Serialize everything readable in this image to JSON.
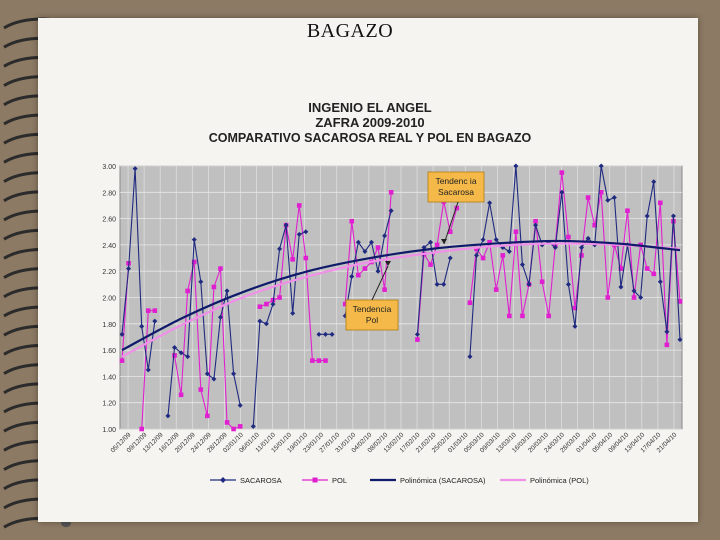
{
  "slide": {
    "title": "BAGAZO"
  },
  "chart_data": {
    "type": "line",
    "title_lines": [
      "INGENIO EL ANGEL",
      "ZAFRA 2009-2010",
      "COMPARATIVO SACAROSA REAL Y POL EN BAGAZO"
    ],
    "xlabel": "",
    "ylabel": "",
    "ylim": [
      1.0,
      3.0
    ],
    "y_ticks": [
      "1.00",
      "1.20",
      "1.40",
      "1.60",
      "1.80",
      "2.00",
      "2.20",
      "2.40",
      "2.60",
      "2.80",
      "3.00"
    ],
    "x_tick_labels": [
      "05/12/09",
      "09/12/09",
      "13/12/09",
      "16/12/09",
      "20/12/09",
      "24/12/09",
      "28/12/09",
      "02/01/10",
      "06/01/10",
      "11/01/10",
      "15/01/10",
      "19/01/10",
      "23/01/10",
      "27/01/10",
      "31/01/10",
      "04/02/10",
      "08/02/10",
      "13/02/10",
      "17/02/10",
      "21/02/10",
      "25/02/10",
      "01/03/10",
      "05/03/10",
      "09/03/10",
      "13/03/10",
      "16/03/10",
      "20/03/10",
      "24/03/10",
      "28/03/10",
      "01/04/10",
      "05/04/10",
      "09/04/10",
      "13/04/10",
      "17/04/10",
      "21/04/10"
    ],
    "grid": true,
    "legend_position": "bottom",
    "colors": {
      "sacarosa": "#1f2a80",
      "pol": "#e020d0",
      "trend_sacarosa": "#101a6a",
      "trend_pol": "#f090e8",
      "plot_bg": "#c0c0c0",
      "callout": "#f5b94a"
    },
    "series": [
      {
        "name": "SACAROSA",
        "values": [
          1.72,
          2.22,
          2.98,
          1.78,
          1.45,
          1.82,
          null,
          1.1,
          1.62,
          1.58,
          1.55,
          2.44,
          2.12,
          1.42,
          1.38,
          1.85,
          2.05,
          1.42,
          1.18,
          null,
          1.02,
          1.82,
          1.8,
          1.95,
          2.37,
          2.55,
          1.88,
          2.48,
          2.5,
          null,
          1.72,
          1.72,
          1.72,
          null,
          1.86,
          2.16,
          2.42,
          2.35,
          2.42,
          2.2,
          2.47,
          2.66,
          null,
          null,
          null,
          1.72,
          2.38,
          2.42,
          2.1,
          2.1,
          2.3,
          null,
          null,
          1.55,
          2.32,
          2.44,
          2.72,
          2.44,
          2.38,
          2.35,
          3.0,
          2.25,
          2.1,
          2.55,
          2.4,
          2.42,
          2.38,
          2.8,
          2.1,
          1.78,
          2.38,
          2.45,
          2.4,
          3.0,
          2.74,
          2.76,
          2.08,
          2.4,
          2.05,
          2.0,
          2.62,
          2.88,
          2.12,
          1.74,
          2.62,
          1.68
        ]
      },
      {
        "name": "POL",
        "values": [
          1.52,
          2.26,
          null,
          1.0,
          1.9,
          1.9,
          null,
          null,
          1.56,
          1.26,
          2.05,
          2.27,
          1.3,
          1.1,
          2.08,
          2.22,
          1.05,
          1.0,
          1.02,
          null,
          null,
          1.93,
          1.95,
          1.98,
          2.0,
          2.55,
          2.29,
          2.7,
          2.3,
          1.52,
          1.52,
          1.52,
          null,
          null,
          1.95,
          2.58,
          2.17,
          2.22,
          2.27,
          2.38,
          2.06,
          2.8,
          null,
          null,
          null,
          1.68,
          2.33,
          2.25,
          2.4,
          2.73,
          2.5,
          2.68,
          null,
          1.96,
          2.37,
          2.3,
          2.42,
          2.06,
          2.32,
          1.86,
          2.5,
          1.86,
          2.1,
          2.58,
          2.12,
          1.86,
          2.4,
          2.95,
          2.46,
          1.92,
          2.32,
          2.76,
          2.55,
          2.8,
          2.0,
          2.4,
          2.22,
          2.66,
          2.0,
          2.4,
          2.22,
          2.18,
          2.72,
          1.64,
          2.58,
          1.97
        ]
      },
      {
        "name": "Polinómica (SACAROSA)",
        "values": [
          1.6,
          1.85,
          2.05,
          2.2,
          2.3,
          2.37,
          2.41,
          2.43,
          2.41,
          2.36
        ]
      },
      {
        "name": "Polinómica (POL)",
        "values": [
          1.55,
          1.8,
          2.01,
          2.16,
          2.27,
          2.34,
          2.39,
          2.41,
          2.4,
          2.37
        ]
      }
    ],
    "annotations": [
      {
        "label": "Tendencia Sacarosa",
        "text_lines": [
          "Tendenc ia",
          "Sacarosa"
        ]
      },
      {
        "label": "Tendencia Pol",
        "text_lines": [
          "Tendencia",
          "Pol"
        ]
      }
    ]
  }
}
